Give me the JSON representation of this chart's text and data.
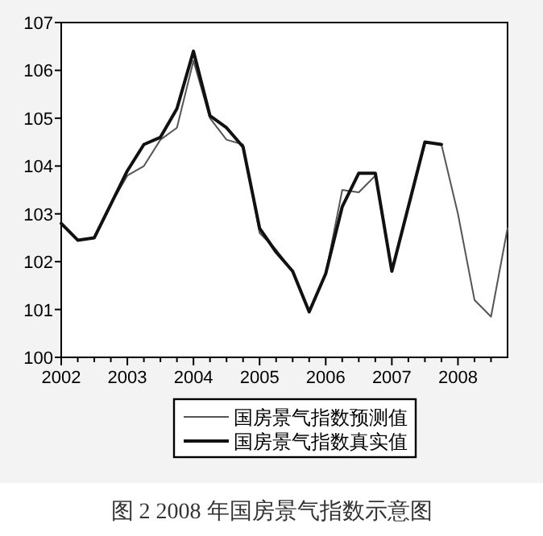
{
  "chart_data": {
    "type": "line",
    "annotations": [
      "图 2  2008 年国房景气指数示意图"
    ],
    "x": [
      2002,
      2002.25,
      2002.5,
      2002.75,
      2003,
      2003.25,
      2003.5,
      2003.75,
      2004,
      2004.25,
      2004.5,
      2004.75,
      2005,
      2005.25,
      2005.5,
      2005.75,
      2006,
      2006.25,
      2006.5,
      2006.75,
      2007,
      2007.25,
      2007.5,
      2007.75,
      2008,
      2008.25,
      2008.5,
      2008.75
    ],
    "series": [
      {
        "name": "国房景气指数预测值",
        "color": "#555555",
        "values": [
          102.8,
          102.45,
          102.5,
          103.2,
          103.8,
          104.0,
          104.55,
          104.8,
          106.2,
          105.0,
          104.55,
          104.45,
          102.6,
          102.25,
          101.8,
          100.95,
          101.75,
          103.5,
          103.45,
          103.8,
          101.8,
          103.15,
          104.5,
          104.45,
          103.0,
          101.2,
          100.85,
          102.7
        ]
      },
      {
        "name": "国房景气指数真实值",
        "color": "#111111",
        "values": [
          102.8,
          102.45,
          102.5,
          103.2,
          103.9,
          104.45,
          104.6,
          105.2,
          106.4,
          105.05,
          104.8,
          104.4,
          102.7,
          102.2,
          101.8,
          100.95,
          101.75,
          103.15,
          103.85,
          103.85,
          101.8,
          103.15,
          104.5,
          104.45,
          null,
          null,
          null,
          null
        ]
      }
    ],
    "xlim": [
      2002,
      2008.75
    ],
    "ylim": [
      100,
      107
    ],
    "xticks": [
      2002,
      {
        "value": 2002.25,
        "label": null
      },
      {
        "value": 2002.5,
        "label": null
      },
      {
        "value": 2002.75,
        "label": null
      },
      2003,
      {
        "value": 2003.25,
        "label": null
      },
      {
        "value": 2003.5,
        "label": null
      },
      {
        "value": 2003.75,
        "label": null
      },
      2004,
      {
        "value": 2004.25,
        "label": null
      },
      {
        "value": 2004.5,
        "label": null
      },
      {
        "value": 2004.75,
        "label": null
      },
      2005,
      {
        "value": 2005.25,
        "label": null
      },
      {
        "value": 2005.5,
        "label": null
      },
      {
        "value": 2005.75,
        "label": null
      },
      2006,
      {
        "value": 2006.25,
        "label": null
      },
      {
        "value": 2006.5,
        "label": null
      },
      {
        "value": 2006.75,
        "label": null
      },
      2007,
      {
        "value": 2007.25,
        "label": null
      },
      {
        "value": 2007.5,
        "label": null
      },
      {
        "value": 2007.75,
        "label": null
      },
      2008,
      {
        "value": 2008.25,
        "label": null
      },
      {
        "value": 2008.5,
        "label": null
      }
    ],
    "yticks": [
      100,
      101,
      102,
      103,
      104,
      105,
      106,
      107
    ],
    "legend": "bottom",
    "grid": false,
    "line_style": "solid",
    "marker": "none"
  }
}
